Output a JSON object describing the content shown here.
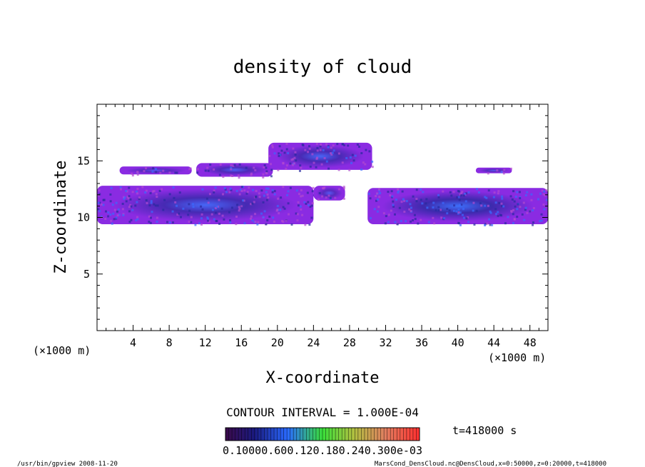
{
  "chart_data": {
    "type": "heatmap",
    "title": "density of cloud",
    "xlabel": "X-coordinate",
    "ylabel": "Z-coordinate",
    "x_unit_left": "(×1000 m)",
    "x_unit_right": "(×1000 m)",
    "xlim": [
      0,
      50
    ],
    "ylim": [
      0,
      20
    ],
    "x_ticks": [
      "4",
      "8",
      "12",
      "16",
      "20",
      "24",
      "28",
      "32",
      "36",
      "40",
      "44",
      "48"
    ],
    "x_tick_values": [
      4,
      8,
      12,
      16,
      20,
      24,
      28,
      32,
      36,
      40,
      44,
      48
    ],
    "y_ticks": [
      "5",
      "10",
      "15"
    ],
    "y_tick_values": [
      5,
      10,
      15
    ],
    "contour_interval": "CONTOUR INTERVAL = 1.000E-04",
    "time_label": "t=418000 s",
    "colorbar_label": "0.10000.600.120.180.240.300e-03",
    "colorbar_range": [
      0.0001,
      0.0007
    ],
    "cloud_regions": [
      {
        "name": "upper-left band",
        "x": [
          2.5,
          10.5
        ],
        "z": [
          13.8,
          14.5
        ],
        "density": 0.25
      },
      {
        "name": "upper-middle band",
        "x": [
          11,
          19.5
        ],
        "z": [
          13.6,
          14.8
        ],
        "density": 0.45
      },
      {
        "name": "upper-center band",
        "x": [
          19,
          30.5
        ],
        "z": [
          14.2,
          16.6
        ],
        "density": 0.55
      },
      {
        "name": "upper-right fragment",
        "x": [
          42,
          46
        ],
        "z": [
          13.9,
          14.4
        ],
        "density": 0.3
      },
      {
        "name": "left low band",
        "x": [
          0,
          24
        ],
        "z": [
          9.4,
          12.8
        ],
        "density": 0.6
      },
      {
        "name": "central fragment",
        "x": [
          24,
          27.5
        ],
        "z": [
          11.5,
          12.8
        ],
        "density": 0.3
      },
      {
        "name": "right low band",
        "x": [
          30,
          50
        ],
        "z": [
          9.4,
          12.6
        ],
        "density": 0.75
      }
    ],
    "grid": false
  },
  "footer": {
    "left": "/usr/bin/gpview  2008-11-20",
    "right": "MarsCond_DensCloud.nc@DensCloud,x=0:50000,z=0:20000,t=418000"
  },
  "colors": {
    "low": "#8a2be2",
    "mid": "#2a2aa0",
    "high": "#2a7fff",
    "background": "#ffffff",
    "axis": "#000000"
  }
}
